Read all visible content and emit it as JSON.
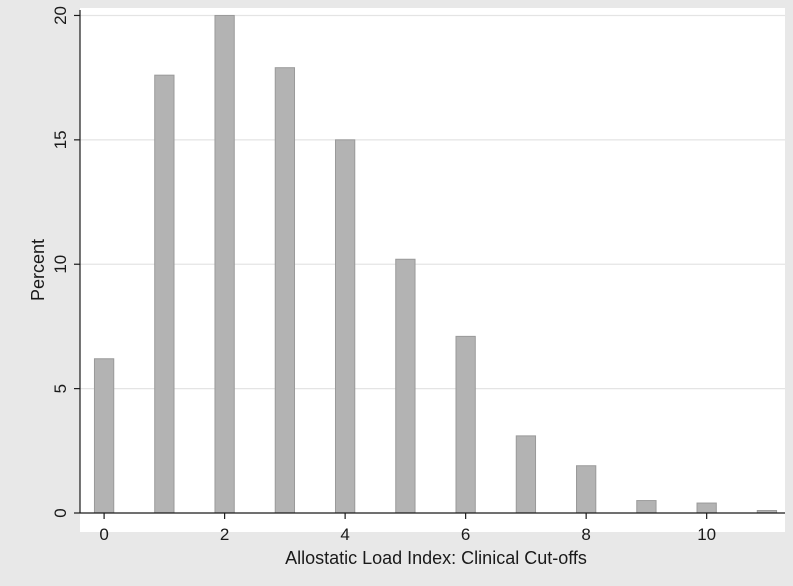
{
  "chart_data": {
    "type": "bar",
    "title": "",
    "xlabel": "Allostatic Load Index: Clinical Cut-offs",
    "ylabel": "Percent",
    "x": [
      0,
      1,
      2,
      3,
      4,
      5,
      6,
      7,
      8,
      9,
      10,
      11
    ],
    "values": [
      6.2,
      17.6,
      20.0,
      17.9,
      15.0,
      10.2,
      7.1,
      3.1,
      1.9,
      0.5,
      0.4,
      0.1
    ],
    "xlim": [
      -0.4,
      11.3
    ],
    "ylim": [
      0,
      20.3
    ],
    "xticks": [
      0,
      2,
      4,
      6,
      8,
      10
    ],
    "yticks": [
      0,
      5,
      10,
      15,
      20
    ],
    "grid": true,
    "colors": {
      "bar_fill": "#b3b3b3",
      "bar_stroke": "#9a9a9a",
      "plot_background": "#ffffff",
      "outer_background": "#e8e8e8",
      "grid": "#e4e4e4",
      "axis": "#1a1a1a"
    }
  }
}
